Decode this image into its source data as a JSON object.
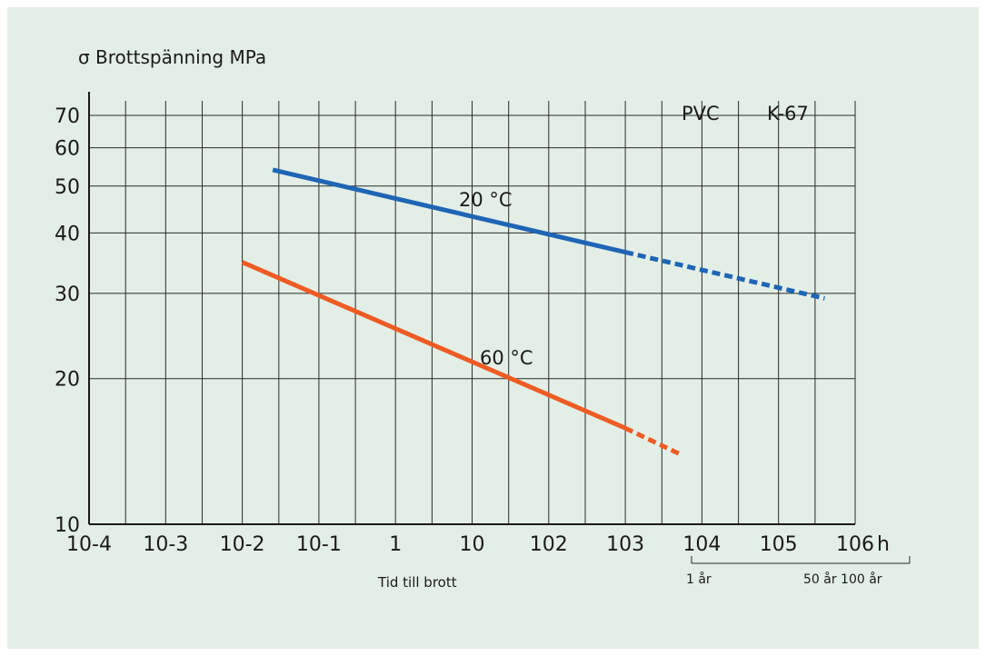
{
  "chart_data": {
    "type": "line",
    "y_label": "σ Brottspänning MPa",
    "x_label": "Tid till brott",
    "x_unit": "h",
    "x_scale": "log",
    "y_scale": "log",
    "xlim": [
      0.0001,
      1000000
    ],
    "ylim": [
      10,
      75
    ],
    "x_tick_labels": [
      "10-4",
      "10-3",
      "10-2",
      "10-1",
      "1",
      "10",
      "102",
      "103",
      "104",
      "105",
      "106"
    ],
    "y_ticks": [
      10,
      20,
      30,
      40,
      50,
      60,
      70
    ],
    "year_axis_labels": [
      "1 år",
      "50 år 100 år"
    ],
    "annotations": [
      "PVC",
      "K-67"
    ],
    "series": [
      {
        "name": "20 °C",
        "color": "#1f65b5",
        "solid": [
          [
            0.025,
            54
          ],
          [
            1000,
            36.5
          ]
        ],
        "dashed": [
          [
            1000,
            36.5
          ],
          [
            400000,
            29.3
          ]
        ]
      },
      {
        "name": "60 °C",
        "color": "#ee5b24",
        "solid": [
          [
            0.01,
            34.8
          ],
          [
            1000,
            15.8
          ]
        ],
        "dashed": [
          [
            1000,
            15.8
          ],
          [
            5000,
            14
          ]
        ]
      }
    ]
  }
}
